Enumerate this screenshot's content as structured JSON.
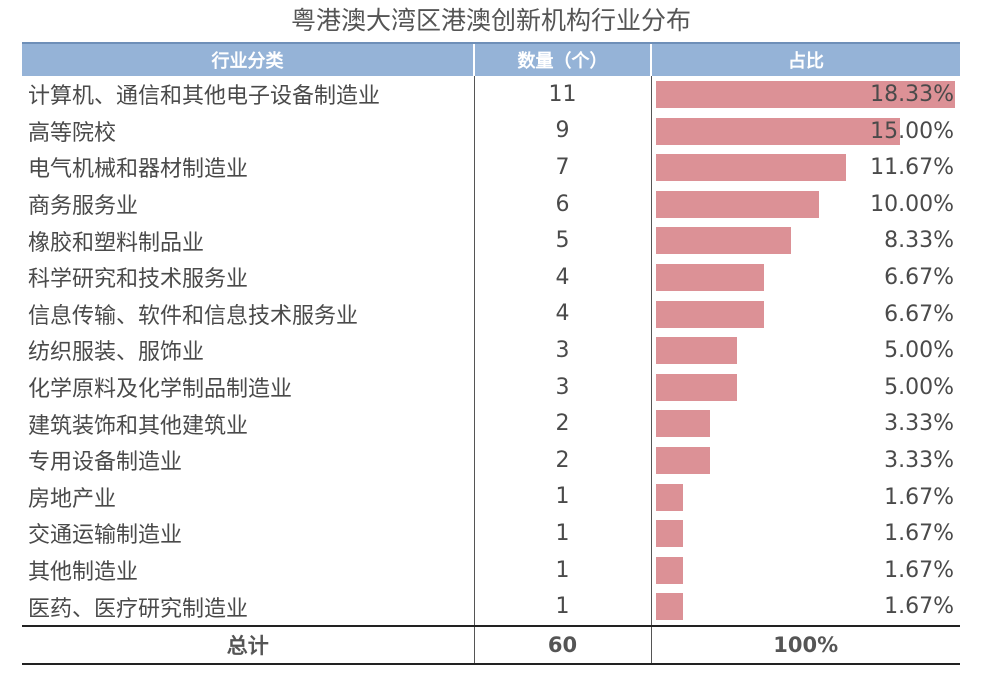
{
  "title": "粤港澳大湾区港澳创新机构行业分布",
  "colors": {
    "header_bg": "#95b3d7",
    "bar": "#dc9196"
  },
  "table": {
    "headers": [
      "行业分类",
      "数量（个）",
      "占比"
    ],
    "total": {
      "label": "总计",
      "count": "60",
      "pct": "100%"
    }
  },
  "chart_data": {
    "type": "bar",
    "orientation": "horizontal",
    "title": "粤港澳大湾区港澳创新机构行业分布",
    "categories": [
      "计算机、通信和其他电子设备制造业",
      "高等院校",
      "电气机械和器材制造业",
      "商务服务业",
      "橡胶和塑料制品业",
      "科学研究和技术服务业",
      "信息传输、软件和信息技术服务业",
      "纺织服装、服饰业",
      "化学原料及化学制品制造业",
      "建筑装饰和其他建筑业",
      "专用设备制造业",
      "房地产业",
      "交通运输制造业",
      "其他制造业",
      "医药、医疗研究制造业"
    ],
    "counts": [
      "11",
      "9",
      "7",
      "6",
      "5",
      "4",
      "4",
      "3",
      "3",
      "2",
      "2",
      "1",
      "1",
      "1",
      "1"
    ],
    "values": [
      18.33,
      15.0,
      11.67,
      10.0,
      8.33,
      6.67,
      6.67,
      5.0,
      5.0,
      3.33,
      3.33,
      1.67,
      1.67,
      1.67,
      1.67
    ],
    "value_labels": [
      "18.33%",
      "15.00%",
      "11.67%",
      "10.00%",
      "8.33%",
      "6.67%",
      "6.67%",
      "5.00%",
      "5.00%",
      "3.33%",
      "3.33%",
      "1.67%",
      "1.67%",
      "1.67%",
      "1.67%"
    ],
    "xlim": [
      0,
      18.33
    ]
  }
}
